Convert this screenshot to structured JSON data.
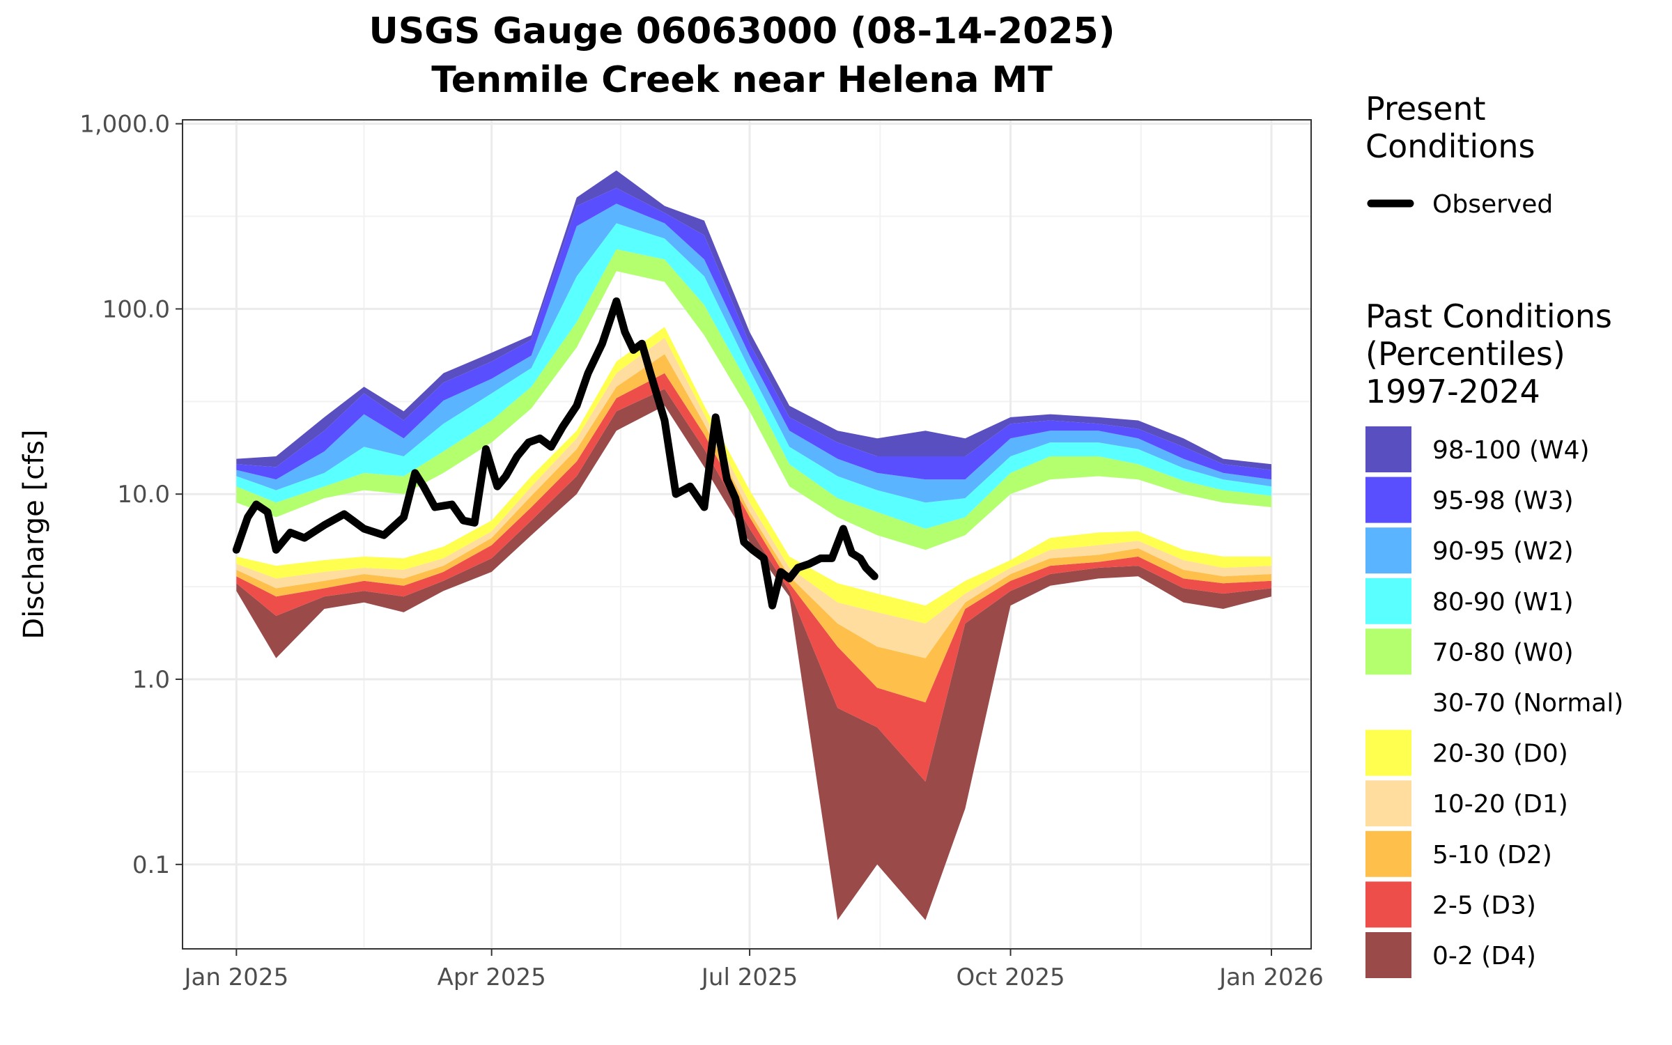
{
  "chart_data": {
    "type": "area",
    "title": "USGS Gauge 06063000 (08-14-2025)",
    "subtitle": "Tenmile Creek near Helena MT",
    "ylabel": "Discharge [cfs]",
    "xlabel": "",
    "yscale": "log10",
    "ylim": [
      0.035,
      1050
    ],
    "xlim": [
      "2024-12-13",
      "2026-01-15"
    ],
    "grid": true,
    "y_ticks": [
      0.1,
      1,
      10,
      100,
      1000
    ],
    "y_tick_labels": [
      "0.1",
      "1.0",
      "10.0",
      "100.0",
      "1,000.0"
    ],
    "x_ticks": [
      "2025-01-01",
      "2025-04-01",
      "2025-07-01",
      "2025-10-01",
      "2026-01-01"
    ],
    "x_tick_labels": [
      "Jan 2025",
      "Apr 2025",
      "Jul 2025",
      "Oct 2025",
      "Jan 2026"
    ],
    "x": [
      "2025-01-01",
      "2025-01-15",
      "2025-02-01",
      "2025-02-15",
      "2025-03-01",
      "2025-03-15",
      "2025-04-01",
      "2025-04-15",
      "2025-05-01",
      "2025-05-15",
      "2025-06-01",
      "2025-06-15",
      "2025-07-01",
      "2025-07-15",
      "2025-08-01",
      "2025-08-15",
      "2025-09-01",
      "2025-09-15",
      "2025-10-01",
      "2025-10-15",
      "2025-11-01",
      "2025-11-15",
      "2025-12-01",
      "2025-12-15",
      "2026-01-01"
    ],
    "percentile_bounds": {
      "labels": [
        "min",
        "p2",
        "p5",
        "p10",
        "p20",
        "p30",
        "p70",
        "p80",
        "p90",
        "p95",
        "p98",
        "max"
      ],
      "values": [
        [
          3.0,
          3.3,
          3.6,
          3.9,
          4.2,
          4.6,
          9.0,
          11.0,
          12.5,
          13.5,
          14.5,
          15.5
        ],
        [
          1.3,
          2.2,
          2.8,
          3.1,
          3.5,
          4.1,
          7.5,
          9.0,
          10.5,
          12.0,
          14.0,
          16.0
        ],
        [
          2.4,
          2.8,
          3.1,
          3.4,
          3.8,
          4.4,
          9.5,
          11.0,
          13.0,
          17.0,
          22.0,
          26.0
        ],
        [
          2.6,
          3.0,
          3.4,
          3.7,
          4.0,
          4.6,
          10.5,
          13.0,
          18.0,
          27.0,
          35.0,
          38.0
        ],
        [
          2.3,
          2.8,
          3.2,
          3.5,
          3.9,
          4.5,
          10.0,
          12.5,
          16.0,
          20.0,
          25.0,
          28.0
        ],
        [
          3.0,
          3.4,
          3.8,
          4.1,
          4.5,
          5.2,
          13.0,
          17.0,
          24.0,
          32.0,
          40.0,
          45.0
        ],
        [
          3.8,
          4.5,
          5.3,
          5.8,
          6.3,
          7.2,
          19.0,
          25.0,
          35.0,
          42.0,
          52.0,
          58.0
        ],
        [
          6.0,
          7.2,
          8.5,
          9.8,
          11.0,
          12.5,
          29.0,
          38.0,
          48.0,
          56.0,
          68.0,
          72.0
        ],
        [
          10.0,
          12.5,
          15.0,
          17.5,
          20.0,
          22.0,
          62.0,
          85.0,
          150.0,
          280.0,
          360.0,
          400.0
        ],
        [
          22.0,
          28.0,
          33.0,
          38.0,
          45.0,
          52.0,
          160.0,
          210.0,
          290.0,
          370.0,
          450.0,
          560.0
        ],
        [
          30.0,
          37.0,
          45.0,
          57.0,
          70.0,
          80.0,
          140.0,
          185.0,
          240.0,
          290.0,
          330.0,
          360.0
        ],
        [
          14.0,
          17.5,
          21.0,
          24.0,
          27.0,
          30.0,
          72.0,
          105.0,
          150.0,
          185.0,
          250.0,
          300.0
        ],
        [
          5.5,
          6.5,
          7.5,
          8.0,
          9.0,
          10.5,
          28.0,
          38.0,
          47.0,
          56.0,
          65.0,
          75.0
        ],
        [
          2.8,
          3.0,
          3.3,
          3.6,
          4.0,
          4.6,
          11.0,
          14.5,
          18.0,
          22.0,
          26.0,
          30.0
        ],
        [
          0.05,
          0.7,
          1.5,
          2.0,
          2.6,
          3.3,
          7.5,
          9.5,
          12.5,
          15.5,
          19.0,
          22.0
        ],
        [
          0.1,
          0.55,
          0.9,
          1.5,
          2.3,
          2.9,
          6.0,
          8.0,
          10.5,
          13.0,
          16.0,
          20.0
        ],
        [
          0.05,
          0.28,
          0.75,
          1.3,
          2.0,
          2.5,
          5.0,
          6.5,
          9.0,
          12.0,
          16.0,
          22.0
        ],
        [
          0.2,
          2.0,
          2.4,
          2.6,
          2.9,
          3.4,
          6.0,
          7.5,
          9.5,
          12.0,
          16.0,
          20.0
        ],
        [
          2.5,
          3.0,
          3.4,
          3.7,
          4.0,
          4.4,
          10.0,
          13.0,
          16.0,
          20.0,
          24.0,
          26.0
        ],
        [
          3.2,
          3.7,
          4.1,
          4.5,
          5.0,
          5.8,
          12.0,
          16.0,
          19.0,
          22.0,
          25.0,
          27.0
        ],
        [
          3.5,
          4.0,
          4.3,
          4.7,
          5.3,
          6.2,
          12.5,
          16.0,
          19.0,
          22.0,
          24.0,
          26.0
        ],
        [
          3.6,
          4.1,
          4.6,
          5.1,
          5.6,
          6.3,
          12.0,
          14.5,
          17.5,
          20.0,
          22.5,
          25.0
        ],
        [
          2.6,
          3.1,
          3.5,
          3.9,
          4.4,
          5.0,
          10.0,
          11.8,
          13.8,
          15.5,
          18.0,
          20.0
        ],
        [
          2.4,
          2.9,
          3.3,
          3.6,
          4.0,
          4.6,
          9.0,
          10.5,
          12.0,
          13.0,
          14.5,
          15.5
        ],
        [
          2.8,
          3.1,
          3.4,
          3.7,
          4.1,
          4.6,
          8.5,
          9.8,
          11.0,
          12.0,
          13.5,
          14.5
        ]
      ]
    },
    "series": [
      {
        "name": "Observed",
        "type": "line",
        "color": "#000000",
        "x": [
          "2025-01-01",
          "2025-01-05",
          "2025-01-08",
          "2025-01-12",
          "2025-01-15",
          "2025-01-20",
          "2025-01-25",
          "2025-02-01",
          "2025-02-08",
          "2025-02-15",
          "2025-02-22",
          "2025-03-01",
          "2025-03-05",
          "2025-03-08",
          "2025-03-12",
          "2025-03-18",
          "2025-03-22",
          "2025-03-26",
          "2025-03-30",
          "2025-04-03",
          "2025-04-06",
          "2025-04-10",
          "2025-04-14",
          "2025-04-18",
          "2025-04-22",
          "2025-04-26",
          "2025-05-01",
          "2025-05-05",
          "2025-05-10",
          "2025-05-15",
          "2025-05-18",
          "2025-05-21",
          "2025-05-24",
          "2025-05-27",
          "2025-06-01",
          "2025-06-05",
          "2025-06-10",
          "2025-06-15",
          "2025-06-19",
          "2025-06-23",
          "2025-06-26",
          "2025-06-29",
          "2025-07-02",
          "2025-07-06",
          "2025-07-09",
          "2025-07-12",
          "2025-07-15",
          "2025-07-18",
          "2025-07-22",
          "2025-07-26",
          "2025-07-30",
          "2025-08-03",
          "2025-08-06",
          "2025-08-09",
          "2025-08-11",
          "2025-08-14"
        ],
        "values": [
          5.0,
          7.5,
          8.8,
          8.0,
          5.0,
          6.2,
          5.8,
          6.8,
          7.8,
          6.5,
          6.0,
          7.5,
          13.0,
          11.0,
          8.5,
          8.8,
          7.2,
          7.0,
          17.5,
          11.0,
          12.5,
          16.0,
          19.0,
          20.0,
          18.0,
          23.0,
          30.0,
          45.0,
          65.0,
          110.0,
          75.0,
          60.0,
          65.0,
          45.0,
          25.0,
          10.0,
          11.0,
          8.5,
          26.0,
          12.0,
          9.5,
          5.5,
          5.0,
          4.5,
          2.5,
          3.8,
          3.5,
          4.0,
          4.2,
          4.5,
          4.5,
          6.5,
          4.8,
          4.5,
          4.0,
          3.6
        ]
      }
    ],
    "legend": {
      "present_title": "Present\nConditions",
      "observed_label": "Observed",
      "past_title": "Past Conditions\n(Percentiles)\n1997-2024",
      "bands": [
        {
          "label": "98-100 (W4)",
          "color": "#5a4fc0"
        },
        {
          "label": "95-98 (W3)",
          "color": "#5a4fff"
        },
        {
          "label": "90-95 (W2)",
          "color": "#5ab4ff"
        },
        {
          "label": "80-90 (W1)",
          "color": "#5affff"
        },
        {
          "label": "70-80 (W0)",
          "color": "#b4ff6e"
        },
        {
          "label": "30-70 (Normal)",
          "color": "#ffffff"
        },
        {
          "label": "20-30 (D0)",
          "color": "#ffff50"
        },
        {
          "label": "10-20 (D1)",
          "color": "#fedd9f"
        },
        {
          "label": "5-10 (D2)",
          "color": "#ffc04b"
        },
        {
          "label": "2-5 (D3)",
          "color": "#ee4e4a"
        },
        {
          "label": "0-2 (D4)",
          "color": "#9b4a4a"
        }
      ]
    }
  }
}
